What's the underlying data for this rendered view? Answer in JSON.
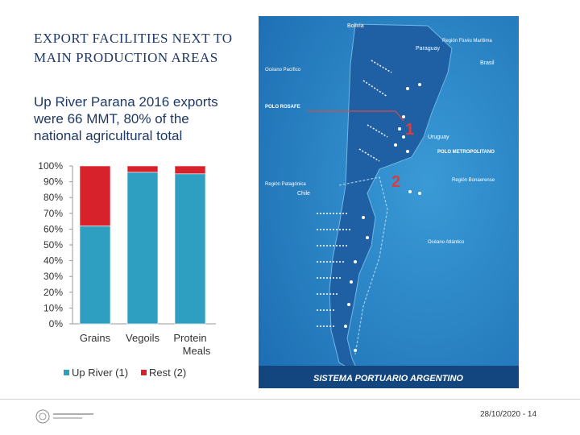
{
  "slide": {
    "title": "EXPORT FACILITIES NEXT TO MAIN PRODUCTION AREAS",
    "subtitle": "Up River Parana 2016 exports were 66 MMT, 80% of the national agricultural total",
    "footer_date_page": "28/10/2020 - 14"
  },
  "chart_data": {
    "type": "bar",
    "stacked": true,
    "categories": [
      "Grains",
      "Vegoils",
      "Protein Meals"
    ],
    "series": [
      {
        "name": "Up River (1)",
        "values": [
          62,
          96,
          95
        ],
        "color": "#2e9fc1"
      },
      {
        "name": "Rest (2)",
        "values": [
          38,
          4,
          5
        ],
        "color": "#d7222c"
      }
    ],
    "ylim": [
      0,
      100
    ],
    "yticks": [
      "0%",
      "10%",
      "20%",
      "30%",
      "40%",
      "50%",
      "60%",
      "70%",
      "80%",
      "90%",
      "100%"
    ],
    "legend": "bottom",
    "grid": false
  },
  "map": {
    "caption": "SISTEMA PORTUARIO ARGENTINO",
    "labels": {
      "bolivia": "Bolivia",
      "paraguay": "Paraguay",
      "brasil": "Brasil",
      "uruguay": "Uruguay",
      "chile": "Chile",
      "pacific": "Océano Pacífico",
      "atlantic": "Océano Atlántico",
      "region_fluvial": "Región Fluvio Marítima",
      "region_patagonica": "Región Patagónica",
      "region_bonaerense": "Región Bonaerense",
      "polo_rosafe": "POLO ROSAFE",
      "polo_metro": "POLO METROPOLITANO"
    },
    "markers": [
      "1",
      "2"
    ],
    "colors": {
      "sea": "#1f7fc2",
      "land": "#1f5fa4",
      "caption_bar": "#13467e"
    }
  }
}
